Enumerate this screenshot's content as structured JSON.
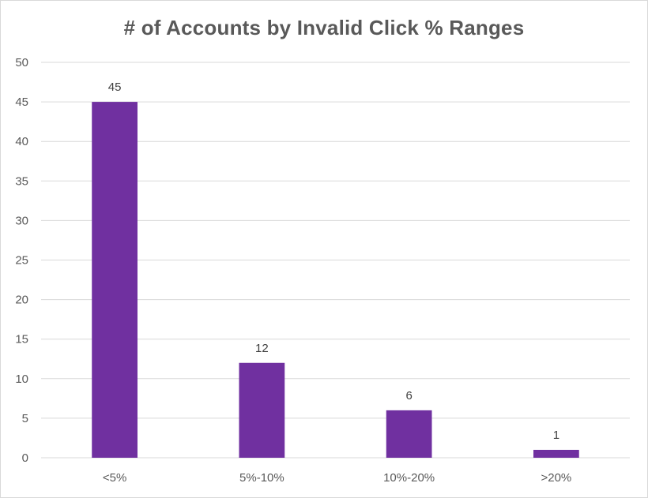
{
  "chart_data": {
    "type": "bar",
    "title": "# of Accounts by Invalid Click % Ranges",
    "xlabel": "",
    "ylabel": "",
    "categories": [
      "<5%",
      "5%-10%",
      "10%-20%",
      ">20%"
    ],
    "values": [
      45,
      12,
      6,
      1
    ],
    "data_labels": [
      "45",
      "12",
      "6",
      "1"
    ],
    "ylim": [
      0,
      50
    ],
    "yticks": [
      0,
      5,
      10,
      15,
      20,
      25,
      30,
      35,
      40,
      45,
      50
    ],
    "grid": true,
    "legend": "none",
    "bar_color": "#7030a0",
    "grid_color": "#d9d9d9"
  }
}
